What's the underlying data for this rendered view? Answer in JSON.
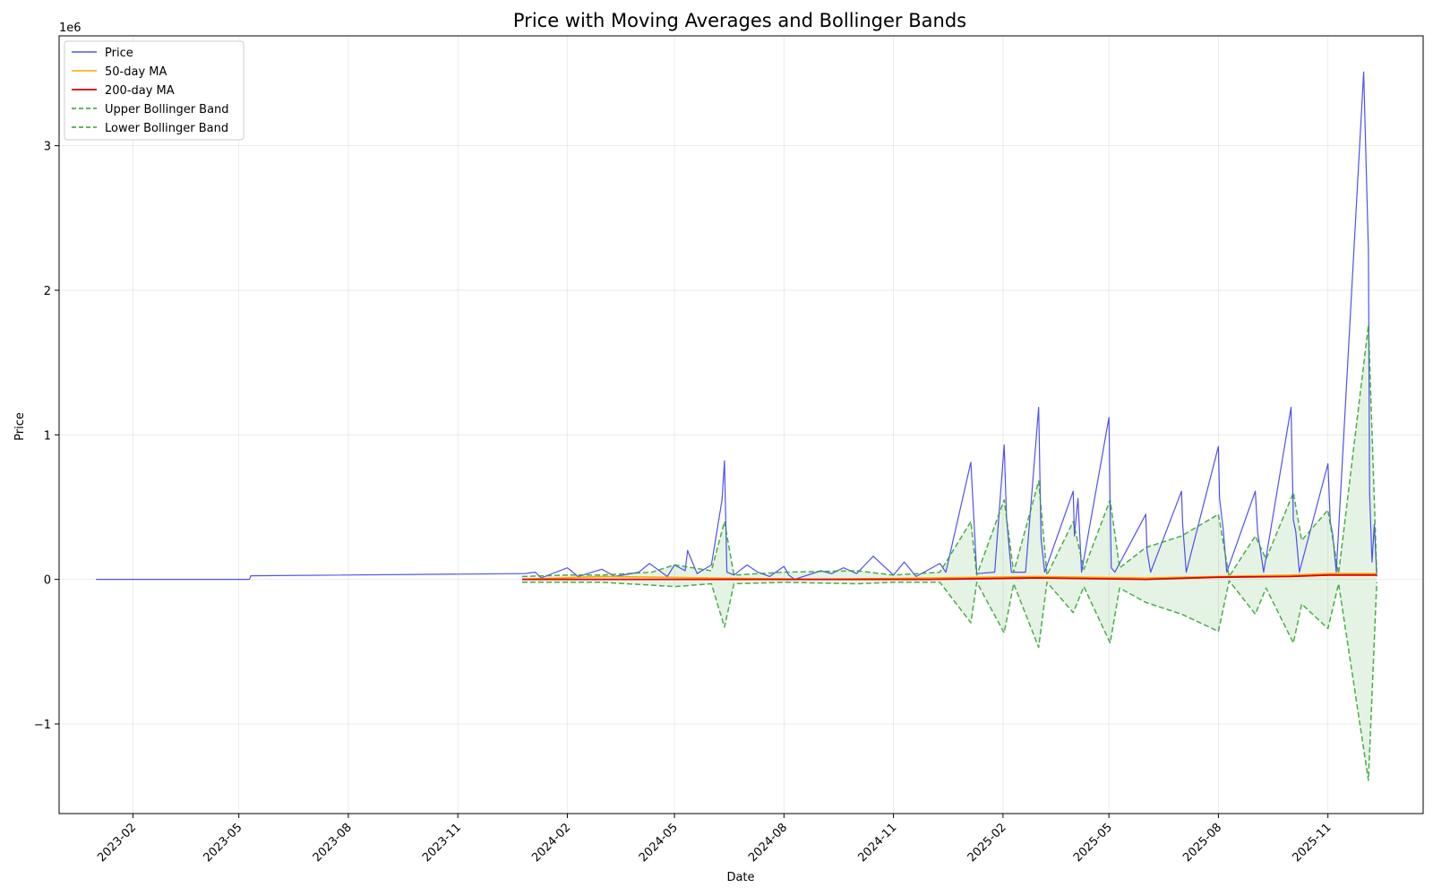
{
  "chart_data": {
    "type": "line",
    "title": "Price with Moving Averages and Bollinger Bands",
    "xlabel": "Date",
    "ylabel": "Price",
    "y_offset_text": "1e6",
    "y_scale_multiplier": 1000000,
    "xlim": [
      "2022-12-01",
      "2026-01-20"
    ],
    "ylim": [
      -1.62,
      3.76
    ],
    "x_ticks": [
      "2023-02",
      "2023-05",
      "2023-08",
      "2023-11",
      "2024-02",
      "2024-05",
      "2024-08",
      "2024-11",
      "2025-02",
      "2025-05",
      "2025-08",
      "2025-11"
    ],
    "y_ticks": [
      -1,
      0,
      1,
      2,
      3
    ],
    "y_tick_labels": [
      "−1",
      "0",
      "1",
      "2",
      "3"
    ],
    "grid": true,
    "legend_position": "top-left",
    "colors": {
      "price": "#3333ee",
      "ma50": "#ffa500",
      "ma200": "#e00000",
      "bollinger": "#2ca02c",
      "band_fill": "#2ca02c"
    },
    "legend": [
      "Price",
      "50-day MA",
      "200-day MA",
      "Upper Bollinger Band",
      "Lower Bollinger Band"
    ],
    "series": [
      {
        "name": "Price",
        "x": [
          "2023-01-01",
          "2023-05-10",
          "2023-05-11",
          "2023-12-25",
          "2023-12-27",
          "2024-01-05",
          "2024-01-10",
          "2024-02-01",
          "2024-02-10",
          "2024-03-01",
          "2024-03-12",
          "2024-04-01",
          "2024-04-10",
          "2024-04-25",
          "2024-05-01",
          "2024-05-10",
          "2024-05-12",
          "2024-05-20",
          "2024-06-01",
          "2024-06-10",
          "2024-06-12",
          "2024-06-14",
          "2024-06-20",
          "2024-07-01",
          "2024-07-10",
          "2024-07-20",
          "2024-08-01",
          "2024-08-05",
          "2024-08-10",
          "2024-09-01",
          "2024-09-10",
          "2024-09-20",
          "2024-10-01",
          "2024-10-08",
          "2024-10-15",
          "2024-11-01",
          "2024-11-10",
          "2024-11-20",
          "2024-12-10",
          "2024-12-15",
          "2025-01-05",
          "2025-01-10",
          "2025-01-25",
          "2025-02-02",
          "2025-02-04",
          "2025-02-08",
          "2025-02-20",
          "2025-03-03",
          "2025-03-05",
          "2025-03-08",
          "2025-04-01",
          "2025-04-02",
          "2025-04-05",
          "2025-04-08",
          "2025-05-01",
          "2025-05-02",
          "2025-05-03",
          "2025-05-06",
          "2025-06-01",
          "2025-06-02",
          "2025-06-05",
          "2025-07-01",
          "2025-07-02",
          "2025-07-05",
          "2025-08-01",
          "2025-08-02",
          "2025-08-05",
          "2025-08-08",
          "2025-09-01",
          "2025-09-03",
          "2025-09-05",
          "2025-09-08",
          "2025-10-01",
          "2025-10-03",
          "2025-10-05",
          "2025-10-08",
          "2025-11-01",
          "2025-11-03",
          "2025-11-05",
          "2025-11-08",
          "2025-12-01",
          "2025-12-05",
          "2025-12-06",
          "2025-12-08",
          "2025-12-10",
          "2025-12-12"
        ],
        "values": [
          0.0,
          0.0,
          0.025,
          0.04,
          0.04,
          0.05,
          0.01,
          0.08,
          0.02,
          0.07,
          0.02,
          0.05,
          0.11,
          0.02,
          0.1,
          0.06,
          0.2,
          0.04,
          0.1,
          0.55,
          0.82,
          0.05,
          0.03,
          0.1,
          0.05,
          0.02,
          0.09,
          0.03,
          0.0,
          0.06,
          0.04,
          0.08,
          0.04,
          0.1,
          0.16,
          0.03,
          0.12,
          0.02,
          0.11,
          0.05,
          0.81,
          0.04,
          0.05,
          0.93,
          0.42,
          0.05,
          0.05,
          1.19,
          0.28,
          0.05,
          0.61,
          0.3,
          0.56,
          0.05,
          1.12,
          0.52,
          0.08,
          0.05,
          0.45,
          0.2,
          0.05,
          0.61,
          0.38,
          0.05,
          0.92,
          0.56,
          0.35,
          0.05,
          0.61,
          0.32,
          0.22,
          0.05,
          1.19,
          0.41,
          0.33,
          0.05,
          0.8,
          0.4,
          0.31,
          0.05,
          3.51,
          2.27,
          0.6,
          0.12,
          0.38,
          0.02
        ]
      },
      {
        "name": "50-day MA",
        "x": [
          "2023-12-25",
          "2024-03-01",
          "2024-06-01",
          "2024-09-01",
          "2024-12-01",
          "2025-03-01",
          "2025-06-01",
          "2025-08-01",
          "2025-10-01",
          "2025-11-01",
          "2025-12-12"
        ],
        "values": [
          0.0,
          0.02,
          0.01,
          0.0,
          0.01,
          0.02,
          0.01,
          0.02,
          0.03,
          0.04,
          0.04
        ]
      },
      {
        "name": "200-day MA",
        "x": [
          "2023-12-25",
          "2024-03-01",
          "2024-06-01",
          "2024-09-01",
          "2024-12-01",
          "2025-03-01",
          "2025-06-01",
          "2025-08-01",
          "2025-10-01",
          "2025-11-01",
          "2025-12-12"
        ],
        "values": [
          0.0,
          0.0,
          0.0,
          0.0,
          0.0,
          0.01,
          0.0,
          0.015,
          0.02,
          0.03,
          0.03
        ]
      },
      {
        "name": "Upper Bollinger Band",
        "x": [
          "2023-12-25",
          "2024-02-01",
          "2024-03-01",
          "2024-04-12",
          "2024-05-01",
          "2024-06-01",
          "2024-06-12",
          "2024-06-20",
          "2024-08-01",
          "2024-10-01",
          "2024-11-01",
          "2024-12-10",
          "2025-01-05",
          "2025-01-10",
          "2025-02-02",
          "2025-02-10",
          "2025-03-03",
          "2025-03-10",
          "2025-04-01",
          "2025-04-10",
          "2025-05-02",
          "2025-05-10",
          "2025-06-01",
          "2025-07-01",
          "2025-08-01",
          "2025-08-10",
          "2025-09-01",
          "2025-09-10",
          "2025-10-03",
          "2025-10-10",
          "2025-11-01",
          "2025-11-10",
          "2025-12-05",
          "2025-12-12"
        ],
        "values": [
          0.02,
          0.03,
          0.03,
          0.05,
          0.1,
          0.06,
          0.4,
          0.03,
          0.05,
          0.06,
          0.03,
          0.05,
          0.4,
          0.03,
          0.55,
          0.05,
          0.68,
          0.03,
          0.4,
          0.07,
          0.55,
          0.08,
          0.22,
          0.3,
          0.45,
          0.02,
          0.3,
          0.14,
          0.6,
          0.27,
          0.48,
          0.04,
          1.76,
          0.04
        ]
      },
      {
        "name": "Lower Bollinger Band",
        "x": [
          "2023-12-25",
          "2024-02-01",
          "2024-03-01",
          "2024-04-12",
          "2024-05-01",
          "2024-06-01",
          "2024-06-12",
          "2024-06-20",
          "2024-08-01",
          "2024-10-01",
          "2024-11-01",
          "2024-12-10",
          "2025-01-05",
          "2025-01-10",
          "2025-02-02",
          "2025-02-10",
          "2025-03-03",
          "2025-03-10",
          "2025-04-01",
          "2025-04-10",
          "2025-05-02",
          "2025-05-10",
          "2025-06-01",
          "2025-07-01",
          "2025-08-01",
          "2025-08-10",
          "2025-09-01",
          "2025-09-10",
          "2025-10-03",
          "2025-10-10",
          "2025-11-01",
          "2025-11-10",
          "2025-12-05",
          "2025-12-12"
        ],
        "values": [
          -0.02,
          -0.02,
          -0.02,
          -0.04,
          -0.05,
          -0.03,
          -0.33,
          -0.03,
          -0.02,
          -0.03,
          -0.02,
          -0.02,
          -0.3,
          -0.02,
          -0.37,
          -0.03,
          -0.47,
          -0.02,
          -0.23,
          -0.05,
          -0.44,
          -0.06,
          -0.16,
          -0.24,
          -0.36,
          -0.01,
          -0.24,
          -0.06,
          -0.44,
          -0.17,
          -0.34,
          -0.03,
          -1.39,
          -0.02
        ]
      }
    ]
  }
}
